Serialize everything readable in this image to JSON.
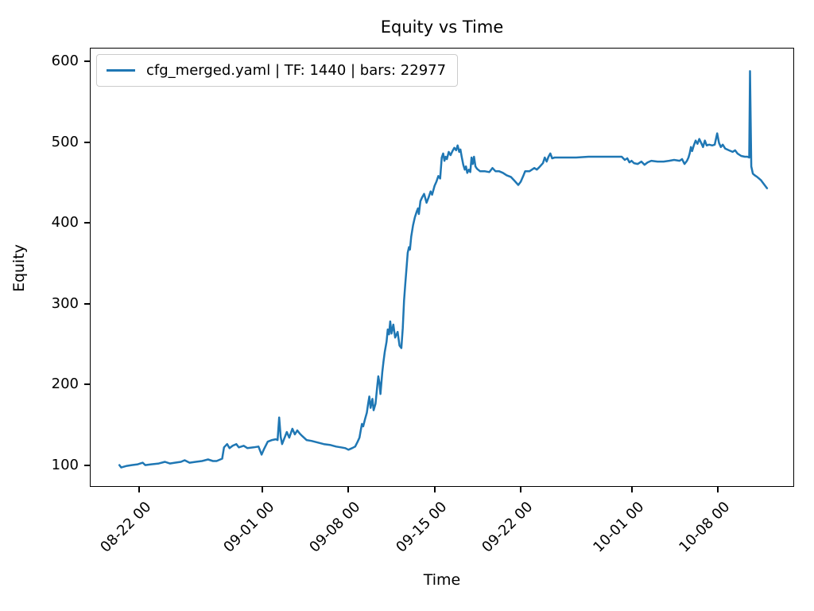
{
  "title": "Equity vs Time",
  "xlabel": "Time",
  "ylabel": "Equity",
  "legend": {
    "label": "cfg_merged.yaml | TF: 1440 | bars: 22977"
  },
  "colors": {
    "line": "#1f77b4",
    "legend_border": "#cccccc",
    "spine": "#000000"
  },
  "chart_data": {
    "type": "line",
    "title": "Equity vs Time",
    "xlabel": "Time",
    "ylabel": "Equity",
    "grid": false,
    "legend_position": "upper left",
    "y_ticks": [
      100,
      200,
      300,
      400,
      500,
      600
    ],
    "ylim": [
      73,
      617
    ],
    "x_unit": "days since 08-18 00:00",
    "xlim_days": [
      0,
      57.2
    ],
    "x_ticks": [
      {
        "d": 4,
        "label": "08-22 00"
      },
      {
        "d": 14,
        "label": "09-01 00"
      },
      {
        "d": 21,
        "label": "09-08 00"
      },
      {
        "d": 28,
        "label": "09-15 00"
      },
      {
        "d": 35,
        "label": "09-22 00"
      },
      {
        "d": 44,
        "label": "10-01 00"
      },
      {
        "d": 51,
        "label": "10-08 00"
      }
    ],
    "series": [
      {
        "name": "cfg_merged.yaml | TF: 1440 | bars: 22977",
        "color": "#1f77b4",
        "points": [
          [
            2.4,
            100
          ],
          [
            2.55,
            97
          ],
          [
            3.0,
            99
          ],
          [
            3.4,
            100
          ],
          [
            3.9,
            101
          ],
          [
            4.3,
            103
          ],
          [
            4.5,
            100
          ],
          [
            5.0,
            101
          ],
          [
            5.6,
            102
          ],
          [
            6.1,
            104
          ],
          [
            6.5,
            102
          ],
          [
            6.9,
            103
          ],
          [
            7.4,
            104
          ],
          [
            7.7,
            106
          ],
          [
            8.1,
            103
          ],
          [
            8.6,
            104
          ],
          [
            9.1,
            105
          ],
          [
            9.6,
            107
          ],
          [
            10.0,
            105
          ],
          [
            10.3,
            105
          ],
          [
            10.75,
            108
          ],
          [
            10.9,
            122
          ],
          [
            11.15,
            126
          ],
          [
            11.35,
            121
          ],
          [
            11.6,
            124
          ],
          [
            11.9,
            126
          ],
          [
            12.1,
            122
          ],
          [
            12.5,
            124
          ],
          [
            12.8,
            121
          ],
          [
            13.3,
            122
          ],
          [
            13.7,
            123
          ],
          [
            13.95,
            113
          ],
          [
            14.15,
            120
          ],
          [
            14.45,
            129
          ],
          [
            14.8,
            131
          ],
          [
            15.1,
            132
          ],
          [
            15.25,
            131
          ],
          [
            15.38,
            159
          ],
          [
            15.5,
            135
          ],
          [
            15.62,
            126
          ],
          [
            16.0,
            141
          ],
          [
            16.2,
            134
          ],
          [
            16.45,
            145
          ],
          [
            16.65,
            138
          ],
          [
            16.85,
            143
          ],
          [
            17.05,
            139
          ],
          [
            17.25,
            136
          ],
          [
            17.6,
            131
          ],
          [
            18.0,
            130
          ],
          [
            18.5,
            128
          ],
          [
            19.0,
            126
          ],
          [
            19.5,
            125
          ],
          [
            20.0,
            123
          ],
          [
            20.4,
            122
          ],
          [
            20.75,
            121
          ],
          [
            21.0,
            119
          ],
          [
            21.3,
            121
          ],
          [
            21.55,
            123
          ],
          [
            21.75,
            129
          ],
          [
            21.9,
            134
          ],
          [
            22.0,
            143
          ],
          [
            22.1,
            151
          ],
          [
            22.2,
            148
          ],
          [
            22.35,
            157
          ],
          [
            22.5,
            165
          ],
          [
            22.6,
            176
          ],
          [
            22.7,
            185
          ],
          [
            22.8,
            171
          ],
          [
            22.95,
            182
          ],
          [
            23.05,
            168
          ],
          [
            23.2,
            176
          ],
          [
            23.35,
            199
          ],
          [
            23.43,
            210
          ],
          [
            23.52,
            202
          ],
          [
            23.6,
            188
          ],
          [
            23.75,
            215
          ],
          [
            23.85,
            228
          ],
          [
            23.95,
            240
          ],
          [
            24.1,
            253
          ],
          [
            24.2,
            268
          ],
          [
            24.3,
            262
          ],
          [
            24.4,
            278
          ],
          [
            24.5,
            263
          ],
          [
            24.65,
            274
          ],
          [
            24.8,
            258
          ],
          [
            25.0,
            265
          ],
          [
            25.15,
            248
          ],
          [
            25.3,
            245
          ],
          [
            25.42,
            270
          ],
          [
            25.52,
            304
          ],
          [
            25.62,
            324
          ],
          [
            25.72,
            344
          ],
          [
            25.82,
            363
          ],
          [
            25.92,
            370
          ],
          [
            26.0,
            367
          ],
          [
            26.1,
            383
          ],
          [
            26.25,
            397
          ],
          [
            26.4,
            407
          ],
          [
            26.55,
            414
          ],
          [
            26.65,
            418
          ],
          [
            26.72,
            411
          ],
          [
            26.85,
            427
          ],
          [
            27.0,
            432
          ],
          [
            27.15,
            436
          ],
          [
            27.35,
            425
          ],
          [
            27.5,
            431
          ],
          [
            27.68,
            439
          ],
          [
            27.8,
            435
          ],
          [
            28.0,
            446
          ],
          [
            28.15,
            451
          ],
          [
            28.3,
            458
          ],
          [
            28.45,
            455
          ],
          [
            28.58,
            481
          ],
          [
            28.7,
            486
          ],
          [
            28.8,
            477
          ],
          [
            28.9,
            482
          ],
          [
            29.0,
            479
          ],
          [
            29.15,
            488
          ],
          [
            29.3,
            484
          ],
          [
            29.45,
            489
          ],
          [
            29.6,
            493
          ],
          [
            29.75,
            490
          ],
          [
            29.87,
            496
          ],
          [
            30.0,
            488
          ],
          [
            30.1,
            491
          ],
          [
            30.2,
            482
          ],
          [
            30.33,
            472
          ],
          [
            30.45,
            466
          ],
          [
            30.55,
            470
          ],
          [
            30.65,
            462
          ],
          [
            30.78,
            466
          ],
          [
            30.9,
            463
          ],
          [
            31.0,
            481
          ],
          [
            31.1,
            473
          ],
          [
            31.2,
            482
          ],
          [
            31.32,
            470
          ],
          [
            31.45,
            467
          ],
          [
            31.7,
            464
          ],
          [
            32.1,
            464
          ],
          [
            32.45,
            463
          ],
          [
            32.7,
            468
          ],
          [
            32.95,
            464
          ],
          [
            33.25,
            464
          ],
          [
            33.55,
            462
          ],
          [
            33.85,
            459
          ],
          [
            34.2,
            457
          ],
          [
            34.5,
            452
          ],
          [
            34.8,
            447
          ],
          [
            35.0,
            451
          ],
          [
            35.2,
            458
          ],
          [
            35.35,
            464
          ],
          [
            35.7,
            464
          ],
          [
            36.1,
            468
          ],
          [
            36.3,
            466
          ],
          [
            36.5,
            469
          ],
          [
            36.8,
            474
          ],
          [
            36.95,
            481
          ],
          [
            37.1,
            476
          ],
          [
            37.25,
            482
          ],
          [
            37.4,
            486
          ],
          [
            37.55,
            480
          ],
          [
            37.75,
            481
          ],
          [
            38.5,
            481
          ],
          [
            39.5,
            481
          ],
          [
            40.5,
            482
          ],
          [
            41.7,
            482
          ],
          [
            42.7,
            482
          ],
          [
            43.2,
            482
          ],
          [
            43.45,
            478
          ],
          [
            43.65,
            480
          ],
          [
            43.82,
            475
          ],
          [
            44.0,
            477
          ],
          [
            44.2,
            474
          ],
          [
            44.5,
            473
          ],
          [
            44.8,
            476
          ],
          [
            45.05,
            472
          ],
          [
            45.3,
            475
          ],
          [
            45.6,
            477
          ],
          [
            46.1,
            476
          ],
          [
            46.6,
            476
          ],
          [
            47.05,
            477
          ],
          [
            47.45,
            478
          ],
          [
            47.9,
            477
          ],
          [
            48.1,
            479
          ],
          [
            48.3,
            473
          ],
          [
            48.5,
            477
          ],
          [
            48.62,
            481
          ],
          [
            48.72,
            486
          ],
          [
            48.82,
            494
          ],
          [
            48.92,
            489
          ],
          [
            49.05,
            496
          ],
          [
            49.2,
            502
          ],
          [
            49.35,
            498
          ],
          [
            49.5,
            504
          ],
          [
            49.65,
            499
          ],
          [
            49.8,
            494
          ],
          [
            49.95,
            502
          ],
          [
            50.1,
            496
          ],
          [
            50.3,
            497
          ],
          [
            50.55,
            496
          ],
          [
            50.75,
            497
          ],
          [
            50.95,
            511
          ],
          [
            51.1,
            499
          ],
          [
            51.25,
            494
          ],
          [
            51.4,
            497
          ],
          [
            51.6,
            492
          ],
          [
            51.9,
            490
          ],
          [
            52.2,
            488
          ],
          [
            52.4,
            490
          ],
          [
            52.6,
            486
          ],
          [
            52.9,
            483
          ],
          [
            53.2,
            482
          ],
          [
            53.4,
            482
          ],
          [
            53.55,
            481
          ],
          [
            53.62,
            588
          ],
          [
            53.72,
            470
          ],
          [
            53.85,
            461
          ],
          [
            54.0,
            459
          ],
          [
            54.2,
            457
          ],
          [
            54.35,
            455
          ],
          [
            54.5,
            453
          ],
          [
            54.65,
            450
          ],
          [
            54.8,
            447
          ],
          [
            55.0,
            443
          ]
        ]
      }
    ]
  }
}
